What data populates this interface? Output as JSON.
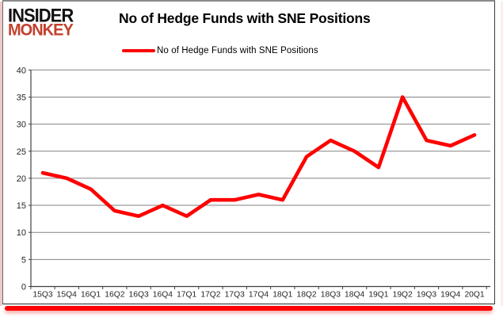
{
  "brand": {
    "line1": "INSIDER",
    "line2": "MONKEY",
    "line1_color": "#111111",
    "line2_color": "#c2402c"
  },
  "header": {
    "title": "No of Hedge Funds with SNE Positions"
  },
  "legend": {
    "label": "No of Hedge Funds with SNE Positions",
    "color": "#ff0000"
  },
  "chart_data": {
    "type": "line",
    "title": "No of Hedge Funds with SNE Positions",
    "categories": [
      "15Q3",
      "15Q4",
      "16Q1",
      "16Q2",
      "16Q3",
      "16Q4",
      "17Q1",
      "17Q2",
      "17Q3",
      "17Q4",
      "18Q1",
      "18Q2",
      "18Q3",
      "18Q4",
      "19Q1",
      "19Q2",
      "19Q3",
      "19Q4",
      "20Q1"
    ],
    "series": [
      {
        "name": "No of Hedge Funds with SNE Positions",
        "color": "#ff0000",
        "values": [
          21,
          20,
          18,
          14,
          13,
          15,
          13,
          16,
          16,
          17,
          16,
          24,
          27,
          25,
          22,
          35,
          27,
          26,
          28
        ]
      }
    ],
    "xlabel": "",
    "ylabel": "",
    "ylim": [
      0,
      40
    ],
    "yticks": [
      0,
      5,
      10,
      15,
      20,
      25,
      30,
      35,
      40
    ],
    "grid": true,
    "legend_position": "top",
    "gridline_color": "#828282",
    "axis_color": "#3f3f3f",
    "tick_label_color": "#262626"
  }
}
